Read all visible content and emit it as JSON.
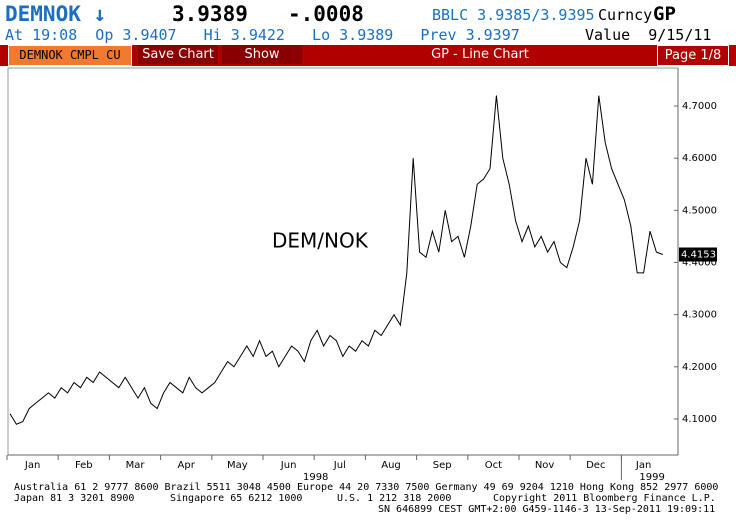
{
  "header": {
    "ticker": "DEMNOK ↓",
    "price": "3.9389",
    "change": "-.0008",
    "bid_ask": "BBLC 3.9385/3.9395",
    "market": "Curncy",
    "function": "GP",
    "quote_line": "At 19:08  Op 3.9407   Hi 3.9422   Lo 3.9389   Prev 3.9397",
    "value_date": "Value  9/15/11",
    "security": "DEMNOK CMPL CU",
    "buttons": [
      "Save Chart",
      "Show"
    ],
    "screen_title": "GP - Line Chart",
    "page": "Page 1/8"
  },
  "chart_data": {
    "type": "line",
    "annotation": "DEM/NOK",
    "color": "#000000",
    "grid": false,
    "categories": [
      "Jan",
      null,
      null,
      null,
      null,
      null,
      null,
      null,
      "Feb",
      null,
      null,
      null,
      null,
      null,
      null,
      null,
      "Mar",
      null,
      null,
      null,
      null,
      null,
      null,
      null,
      "Apr",
      null,
      null,
      null,
      null,
      null,
      null,
      null,
      "May",
      null,
      null,
      null,
      null,
      null,
      null,
      null,
      "Jun",
      null,
      null,
      null,
      null,
      null,
      null,
      null,
      "Jul",
      null,
      null,
      null,
      null,
      null,
      null,
      null,
      "Aug",
      null,
      null,
      null,
      null,
      null,
      null,
      null,
      "Sep",
      null,
      null,
      null,
      null,
      null,
      null,
      null,
      "Oct",
      null,
      null,
      null,
      null,
      null,
      null,
      null,
      "Nov",
      null,
      null,
      null,
      null,
      null,
      null,
      null,
      "Dec",
      null,
      null,
      null,
      null,
      null,
      null,
      null,
      "Jan",
      null,
      null,
      null,
      null,
      null,
      null
    ],
    "years": [
      "1998",
      "1999"
    ],
    "values": [
      4.11,
      4.09,
      4.095,
      4.12,
      4.13,
      4.14,
      4.15,
      4.14,
      4.16,
      4.15,
      4.17,
      4.16,
      4.18,
      4.17,
      4.19,
      4.18,
      4.17,
      4.16,
      4.18,
      4.16,
      4.14,
      4.16,
      4.13,
      4.12,
      4.15,
      4.17,
      4.16,
      4.15,
      4.18,
      4.16,
      4.15,
      4.16,
      4.17,
      4.19,
      4.21,
      4.2,
      4.22,
      4.24,
      4.22,
      4.25,
      4.22,
      4.23,
      4.2,
      4.22,
      4.24,
      4.23,
      4.21,
      4.25,
      4.27,
      4.24,
      4.26,
      4.25,
      4.22,
      4.24,
      4.23,
      4.25,
      4.24,
      4.27,
      4.26,
      4.28,
      4.3,
      4.28,
      4.38,
      4.6,
      4.42,
      4.41,
      4.46,
      4.42,
      4.5,
      4.44,
      4.45,
      4.41,
      4.47,
      4.55,
      4.56,
      4.58,
      4.72,
      4.6,
      4.55,
      4.48,
      4.44,
      4.47,
      4.43,
      4.45,
      4.42,
      4.44,
      4.4,
      4.39,
      4.43,
      4.48,
      4.6,
      4.55,
      4.72,
      4.63,
      4.58,
      4.55,
      4.52,
      4.47,
      4.38,
      4.38,
      4.46,
      4.42,
      4.4153
    ],
    "ylim": [
      4.03,
      4.77
    ],
    "yticks": [
      {
        "value": 4.1,
        "label": "4.1000"
      },
      {
        "value": 4.2,
        "label": "4.2000"
      },
      {
        "value": 4.3,
        "label": "4.3000"
      },
      {
        "value": 4.4,
        "label": "4.4000"
      },
      {
        "value": 4.5,
        "label": "4.5000"
      },
      {
        "value": 4.6,
        "label": "4.6000"
      },
      {
        "value": 4.7,
        "label": "4.7000"
      }
    ]
  },
  "footer": {
    "line1": "Australia 61 2 9777 8600 Brazil 5511 3048 4500 Europe 44 20 7330 7500 Germany 49 69 9204 1210 Hong Kong 852 2977 6000",
    "line2": [
      "Japan 81 3 3201 8900",
      "Singapore 65 6212 1000",
      "U.S. 1 212 318 2000",
      "Copyright 2011 Bloomberg Finance L.P."
    ],
    "line3": "SN 646899 CEST GMT+2:00 G459-1146-3 13-Sep-2011 19:09:11"
  }
}
